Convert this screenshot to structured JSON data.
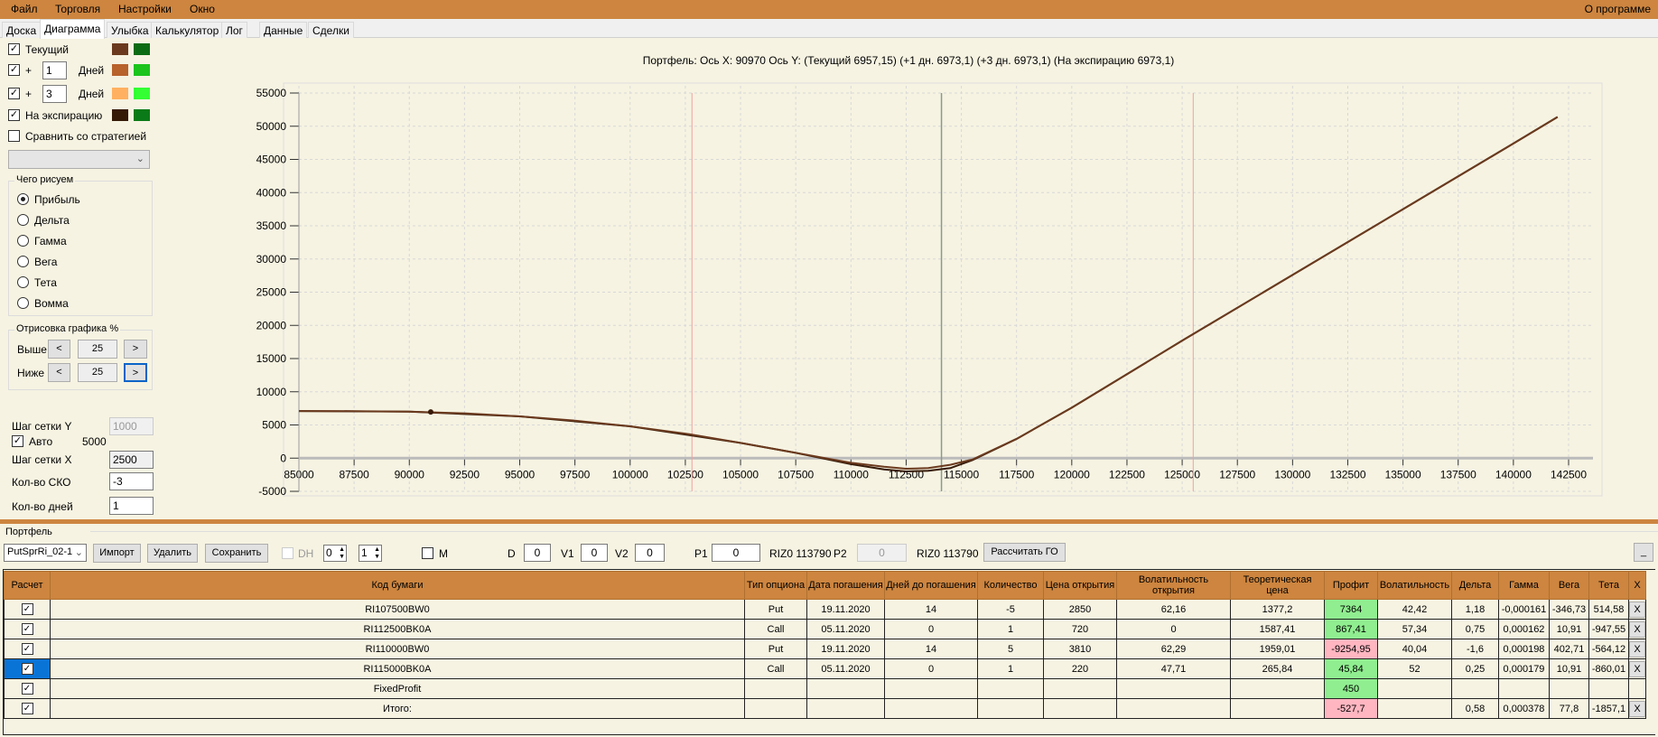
{
  "menu": {
    "items": [
      "Файл",
      "Торговля",
      "Настройки",
      "Окно"
    ],
    "about": "О программе"
  },
  "tabs": [
    "Доска",
    "Диаграмма",
    "Улыбка",
    "Калькулятор",
    "Лог",
    "Данные",
    "Сделки"
  ],
  "left": {
    "curves": [
      {
        "label": "Текущий",
        "checked": true,
        "colors": [
          "#6b3a1e",
          "#0b6b14"
        ]
      },
      {
        "label": "+",
        "days": "1",
        "days_label": "Дней",
        "checked": true,
        "colors": [
          "#b8622c",
          "#1cc41c"
        ]
      },
      {
        "label": "+",
        "days": "3",
        "days_label": "Дней",
        "checked": true,
        "colors": [
          "#ffb060",
          "#33ff33"
        ]
      },
      {
        "label": "На экспирацию",
        "checked": true,
        "colors": [
          "#361a08",
          "#0a7a18"
        ]
      }
    ],
    "compare_label": "Сравнить со стратегией",
    "draw_group": "Чего рисуем",
    "radios": [
      "Прибыль",
      "Дельта",
      "Гамма",
      "Вега",
      "Тета",
      "Вомма"
    ],
    "render_group": "Отрисовка графика %",
    "above_label": "Выше",
    "above_value": "25",
    "below_label": "Ниже",
    "below_value": "25",
    "prev": "<",
    "next": ">",
    "grid_y_label": "Шаг сетки Y",
    "grid_y_value": "1000",
    "auto_label": "Авто",
    "auto_value": "5000",
    "grid_x_label": "Шаг сетки X",
    "grid_x_value": "2500",
    "sko_label": "Кол-во СКО",
    "sko_value": "-3",
    "days_label": "Кол-во дней",
    "days_value": "1"
  },
  "chart_data": {
    "type": "line",
    "title": "Портфель: Ось X: 90970 Ось Y:  (Текущий 6957,15)  (+1 дн. 6973,1)  (+3 дн. 6973,1)  (На экспирацию 6973,1)",
    "xlim": [
      85000,
      142500
    ],
    "ylim": [
      -5000,
      55000
    ],
    "xticks": [
      85000,
      87500,
      90000,
      92500,
      95000,
      97500,
      100000,
      102500,
      105000,
      107500,
      110000,
      112500,
      115000,
      117500,
      120000,
      122500,
      125000,
      127500,
      130000,
      132500,
      135000,
      137500,
      140000,
      142500
    ],
    "yticks": [
      -5000,
      0,
      5000,
      10000,
      15000,
      20000,
      25000,
      30000,
      35000,
      40000,
      45000,
      50000,
      55000
    ],
    "grid": true,
    "vlines": [
      {
        "x": 102800,
        "color": "#f0a0a0"
      },
      {
        "x": 114100,
        "color": "#8a9a8a"
      },
      {
        "x": 125500,
        "color": "#f0a0a0"
      }
    ],
    "marker": {
      "x": 90970,
      "y": 6957
    },
    "series": [
      {
        "name": "Текущий",
        "color": "#6b3a1e",
        "x": [
          85000,
          87500,
          90000,
          92500,
          95000,
          97500,
          100000,
          102500,
          105000,
          107500,
          110000,
          111500,
          112500,
          113500,
          114500,
          115500,
          117500,
          120000,
          125000,
          130000,
          135000,
          140000,
          142000
        ],
        "y": [
          7100,
          7080,
          7000,
          6750,
          6300,
          5650,
          4800,
          3700,
          2300,
          800,
          -700,
          -1300,
          -1600,
          -1500,
          -1000,
          -200,
          2900,
          7600,
          17700,
          27600,
          37500,
          47400,
          51400
        ]
      },
      {
        "name": "На экспирацию",
        "color": "#361a08",
        "x": [
          85000,
          90000,
          95000,
          100000,
          105000,
          107500,
          110000,
          111500,
          112500,
          113500,
          114500,
          115500,
          117500,
          120000,
          125000,
          130000,
          135000,
          140000,
          142000
        ],
        "y": [
          7100,
          7000,
          6300,
          4800,
          2300,
          800,
          -900,
          -1700,
          -2000,
          -1900,
          -1500,
          -300,
          2900,
          7600,
          17700,
          27600,
          37500,
          47400,
          51400
        ]
      }
    ]
  },
  "portfolio": {
    "title": "Портфель",
    "combo": "PutSprRi_02-1",
    "import": "Импорт",
    "delete": "Удалить",
    "save": "Сохранить",
    "dh": "DH",
    "spin1": "0",
    "spin2": "1",
    "m": "M",
    "d_label": "D",
    "d": "0",
    "v1_label": "V1",
    "v1": "0",
    "v2_label": "V2",
    "v2": "0",
    "p1_label": "P1",
    "p1": "0",
    "riz1": "RIZ0 113790",
    "p2_label": "P2",
    "p2": "0",
    "riz2": "RIZ0 113790",
    "calc": "Рассчитать ГО",
    "minimize": "_"
  },
  "table": {
    "headers": [
      "Расчет",
      "Код бумаги",
      "Тип опциона",
      "Дата погашения",
      "Дней до погашения",
      "Количество",
      "Цена открытия",
      "Волатильность открытия",
      "Теоретическая цена",
      "Профит",
      "Волатильность",
      "Дельта",
      "Гамма",
      "Вега",
      "Тета",
      "X"
    ],
    "rows": [
      [
        "✓",
        "RI107500BW0",
        "Put",
        "19.11.2020",
        "14",
        "-5",
        "2850",
        "62,16",
        "1377,2",
        "7364",
        "42,42",
        "1,18",
        "-0,000161",
        "-346,73",
        "514,58",
        "X"
      ],
      [
        "✓",
        "RI112500BK0A",
        "Call",
        "05.11.2020",
        "0",
        "1",
        "720",
        "0",
        "1587,41",
        "867,41",
        "57,34",
        "0,75",
        "0,000162",
        "10,91",
        "-947,55",
        "X"
      ],
      [
        "✓",
        "RI110000BW0",
        "Put",
        "19.11.2020",
        "14",
        "5",
        "3810",
        "62,29",
        "1959,01",
        "-9254,95",
        "40,04",
        "-1,6",
        "0,000198",
        "402,71",
        "-564,12",
        "X"
      ],
      [
        "✓",
        "RI115000BK0A",
        "Call",
        "05.11.2020",
        "0",
        "1",
        "220",
        "47,71",
        "265,84",
        "45,84",
        "52",
        "0,25",
        "0,000179",
        "10,91",
        "-860,01",
        "X"
      ],
      [
        "✓",
        "FixedProfit",
        "",
        "",
        "",
        "",
        "",
        "",
        "",
        "450",
        "",
        "",
        "",
        "",
        "",
        ""
      ],
      [
        "✓",
        "Итого:",
        "",
        "",
        "",
        "",
        "",
        "",
        "",
        "-527,7",
        "",
        "0,58",
        "0,000378",
        "77,8",
        "-1857,1",
        "X"
      ]
    ],
    "profit_colors": [
      "g",
      "g",
      "r",
      "g",
      "g",
      "r"
    ]
  }
}
